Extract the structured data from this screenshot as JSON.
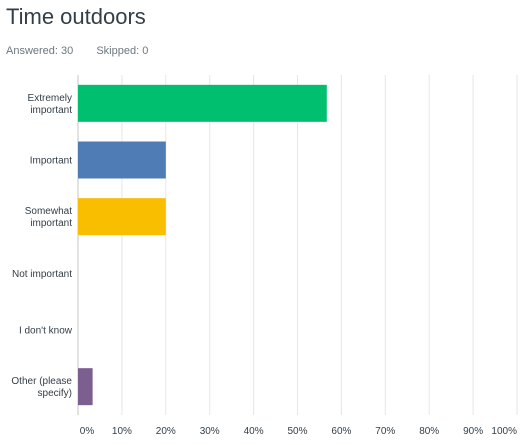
{
  "question": {
    "title": "Time outdoors",
    "answered_label": "Answered: 30",
    "skipped_label": "Skipped: 0"
  },
  "colors": {
    "bars": [
      "#00bf6f",
      "#507cb6",
      "#f9be00",
      "#6bc8cd",
      "#ff8b4f",
      "#7d5e90"
    ],
    "grid": "#e6e6e6",
    "axis": "#c5c5c5"
  },
  "chart_data": {
    "type": "bar",
    "orientation": "horizontal",
    "categories": [
      [
        "Extremely",
        "important"
      ],
      [
        "Important"
      ],
      [
        "Somewhat",
        "important"
      ],
      [
        "Not important"
      ],
      [
        "I don't know"
      ],
      [
        "Other (please",
        "specify)"
      ]
    ],
    "values": [
      56.67,
      20.0,
      20.0,
      0,
      0,
      3.33
    ],
    "xlim": [
      0,
      100
    ],
    "xticks": [
      "0%",
      "10%",
      "20%",
      "30%",
      "40%",
      "50%",
      "60%",
      "70%",
      "80%",
      "90%",
      "100%"
    ],
    "grid": true,
    "title": "",
    "xlabel": "",
    "ylabel": ""
  }
}
